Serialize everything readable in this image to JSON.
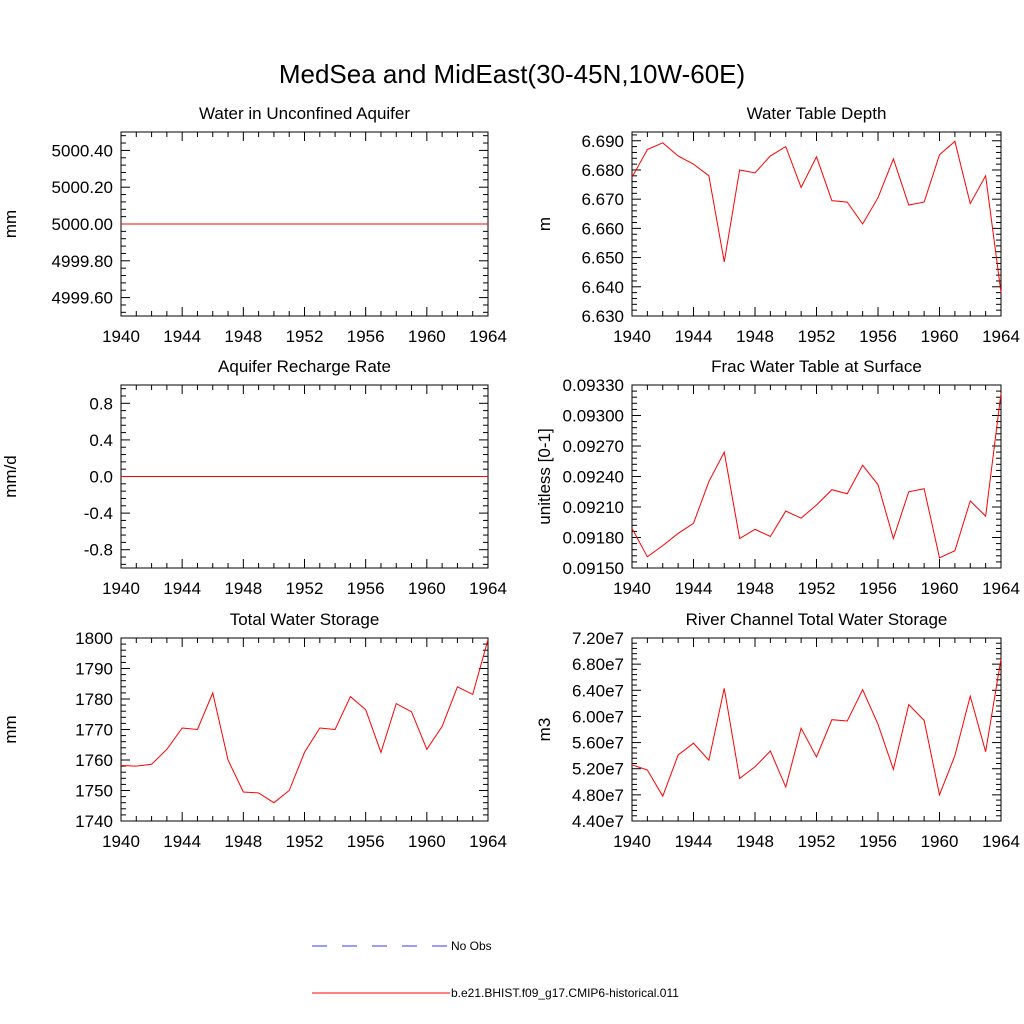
{
  "figure": {
    "title": "MedSea and MidEast(30-45N,10W-60E)"
  },
  "legend": {
    "placement": "bottom-center",
    "entries": [
      {
        "label": "No Obs",
        "color": "#3a3aff",
        "dashed": true
      },
      {
        "label": "b.e21.BHIST.f09_g17.CMIP6-historical.011",
        "color": "#ff0000",
        "dashed": false
      }
    ]
  },
  "chart_data": [
    {
      "type": "line",
      "title": "Water in Unconfined Aquifer",
      "ylabel": "mm",
      "xlim": [
        1940,
        1964
      ],
      "ylim": [
        4999.5,
        5000.5
      ],
      "x_ticks": [
        1940,
        1944,
        1948,
        1952,
        1956,
        1960,
        1964
      ],
      "y_ticks": [
        4999.6,
        4999.8,
        5000.0,
        5000.2,
        5000.4
      ],
      "y_tick_labels": [
        "4999.60",
        "4999.80",
        "5000.00",
        "5000.20",
        "5000.40"
      ],
      "series": [
        {
          "color": "#ff0000",
          "x": [
            1940,
            1941,
            1942,
            1943,
            1944,
            1945,
            1946,
            1947,
            1948,
            1949,
            1950,
            1951,
            1952,
            1953,
            1954,
            1955,
            1956,
            1957,
            1958,
            1959,
            1960,
            1961,
            1962,
            1963,
            1964
          ],
          "y": [
            5000.0,
            5000.0,
            5000.0,
            5000.0,
            5000.0,
            5000.0,
            5000.0,
            5000.0,
            5000.0,
            5000.0,
            5000.0,
            5000.0,
            5000.0,
            5000.0,
            5000.0,
            5000.0,
            5000.0,
            5000.0,
            5000.0,
            5000.0,
            5000.0,
            5000.0,
            5000.0,
            5000.0,
            5000.0
          ]
        }
      ]
    },
    {
      "type": "line",
      "title": "Water Table Depth",
      "ylabel": "m",
      "xlim": [
        1940,
        1964
      ],
      "ylim": [
        6.63,
        6.693
      ],
      "x_ticks": [
        1940,
        1944,
        1948,
        1952,
        1956,
        1960,
        1964
      ],
      "y_ticks": [
        6.63,
        6.64,
        6.65,
        6.66,
        6.67,
        6.68,
        6.69
      ],
      "y_tick_labels": [
        "6.630",
        "6.640",
        "6.650",
        "6.660",
        "6.670",
        "6.680",
        "6.690"
      ],
      "series": [
        {
          "color": "#ff0000",
          "x": [
            1940,
            1941,
            1942,
            1943,
            1944,
            1945,
            1946,
            1947,
            1948,
            1949,
            1950,
            1951,
            1952,
            1953,
            1954,
            1955,
            1956,
            1957,
            1958,
            1959,
            1960,
            1961,
            1962,
            1963,
            1964
          ],
          "y": [
            6.6775,
            6.687,
            6.6893,
            6.6848,
            6.682,
            6.678,
            6.6485,
            6.68,
            6.679,
            6.6848,
            6.688,
            6.674,
            6.6845,
            6.6695,
            6.669,
            6.6615,
            6.6705,
            6.6838,
            6.668,
            6.669,
            6.6852,
            6.6898,
            6.6685,
            6.678,
            6.638
          ]
        }
      ]
    },
    {
      "type": "line",
      "title": "Aquifer Recharge Rate",
      "ylabel": "mm/d",
      "xlim": [
        1940,
        1964
      ],
      "ylim": [
        -1.0,
        1.0
      ],
      "x_ticks": [
        1940,
        1944,
        1948,
        1952,
        1956,
        1960,
        1964
      ],
      "y_ticks": [
        -0.8,
        -0.4,
        0.0,
        0.4,
        0.8
      ],
      "y_tick_labels": [
        "-0.8",
        "-0.4",
        "0.0",
        "0.4",
        "0.8"
      ],
      "series": [
        {
          "color": "#ff0000",
          "x": [
            1940,
            1941,
            1942,
            1943,
            1944,
            1945,
            1946,
            1947,
            1948,
            1949,
            1950,
            1951,
            1952,
            1953,
            1954,
            1955,
            1956,
            1957,
            1958,
            1959,
            1960,
            1961,
            1962,
            1963,
            1964
          ],
          "y": [
            0,
            0,
            0,
            0,
            0,
            0,
            0,
            0,
            0,
            0,
            0,
            0,
            0,
            0,
            0,
            0,
            0,
            0,
            0,
            0,
            0,
            0,
            0,
            0,
            0
          ]
        }
      ]
    },
    {
      "type": "line",
      "title": "Frac Water Table at Surface",
      "ylabel": "unitless [0-1]",
      "xlim": [
        1940,
        1964
      ],
      "ylim": [
        0.0915,
        0.0933
      ],
      "x_ticks": [
        1940,
        1944,
        1948,
        1952,
        1956,
        1960,
        1964
      ],
      "y_ticks": [
        0.0915,
        0.0918,
        0.0921,
        0.0924,
        0.0927,
        0.093,
        0.0933
      ],
      "y_tick_labels": [
        "0.09150",
        "0.09180",
        "0.09210",
        "0.09240",
        "0.09270",
        "0.09300",
        "0.09330"
      ],
      "series": [
        {
          "color": "#ff0000",
          "x": [
            1940,
            1941,
            1942,
            1943,
            1944,
            1945,
            1946,
            1947,
            1948,
            1949,
            1950,
            1951,
            1952,
            1953,
            1954,
            1955,
            1956,
            1957,
            1958,
            1959,
            1960,
            1961,
            1962,
            1963,
            1964
          ],
          "y": [
            0.09189,
            0.09161,
            0.09172,
            0.09184,
            0.09194,
            0.09235,
            0.09264,
            0.09179,
            0.09188,
            0.09181,
            0.09206,
            0.09199,
            0.09212,
            0.09227,
            0.09223,
            0.09251,
            0.09232,
            0.09179,
            0.09225,
            0.09228,
            0.0916,
            0.09167,
            0.09216,
            0.09201,
            0.09322
          ]
        }
      ]
    },
    {
      "type": "line",
      "title": "Total Water Storage",
      "ylabel": "mm",
      "xlim": [
        1940,
        1964
      ],
      "ylim": [
        1740,
        1800
      ],
      "x_ticks": [
        1940,
        1944,
        1948,
        1952,
        1956,
        1960,
        1964
      ],
      "y_ticks": [
        1740,
        1750,
        1760,
        1770,
        1780,
        1790,
        1800
      ],
      "y_tick_labels": [
        "1740",
        "1750",
        "1760",
        "1770",
        "1780",
        "1790",
        "1800"
      ],
      "series": [
        {
          "color": "#ff0000",
          "x": [
            1940,
            1941,
            1942,
            1943,
            1944,
            1945,
            1946,
            1947,
            1948,
            1949,
            1950,
            1951,
            1952,
            1953,
            1954,
            1955,
            1956,
            1957,
            1958,
            1959,
            1960,
            1961,
            1962,
            1963,
            1964
          ],
          "y": [
            1758.2,
            1758.0,
            1758.6,
            1763.5,
            1770.5,
            1770.0,
            1782.0,
            1760.0,
            1749.5,
            1749.2,
            1746.0,
            1750.0,
            1762.5,
            1770.5,
            1770.0,
            1780.8,
            1776.5,
            1762.5,
            1778.5,
            1775.8,
            1763.5,
            1771.0,
            1784.0,
            1781.5,
            1799.5
          ]
        }
      ]
    },
    {
      "type": "line",
      "title": "River Channel Total Water Storage",
      "ylabel": "m3",
      "xlim": [
        1940,
        1964
      ],
      "ylim": [
        44000000,
        72000000
      ],
      "x_ticks": [
        1940,
        1944,
        1948,
        1952,
        1956,
        1960,
        1964
      ],
      "y_ticks": [
        44000000,
        48000000,
        52000000,
        56000000,
        60000000,
        64000000,
        68000000,
        72000000
      ],
      "y_tick_labels": [
        "4.40e7",
        "4.80e7",
        "5.20e7",
        "5.60e7",
        "6.00e7",
        "6.40e7",
        "6.80e7",
        "7.20e7"
      ],
      "series": [
        {
          "color": "#ff0000",
          "x": [
            1940,
            1941,
            1942,
            1943,
            1944,
            1945,
            1946,
            1947,
            1948,
            1949,
            1950,
            1951,
            1952,
            1953,
            1954,
            1955,
            1956,
            1957,
            1958,
            1959,
            1960,
            1961,
            1962,
            1963,
            1964
          ],
          "y": [
            52600000,
            51800000,
            47800000,
            54100000,
            55900000,
            53300000,
            64300000,
            50500000,
            52300000,
            54700000,
            49200000,
            58200000,
            53800000,
            59500000,
            59300000,
            64100000,
            58800000,
            51900000,
            61800000,
            59400000,
            48000000,
            54000000,
            63100000,
            54600000,
            68800000
          ]
        }
      ]
    }
  ]
}
